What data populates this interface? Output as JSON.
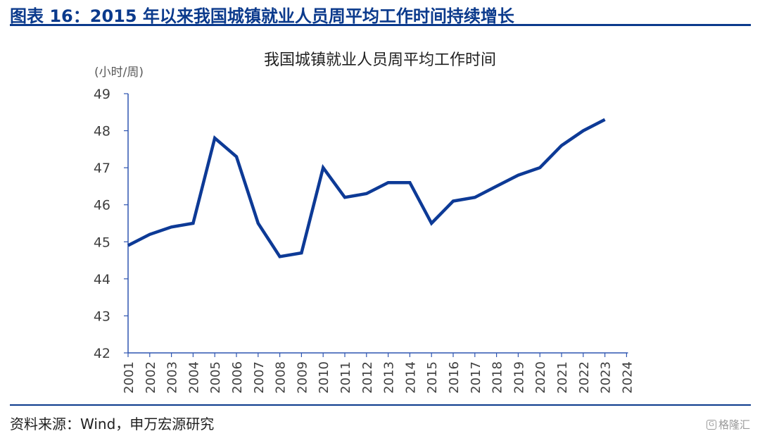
{
  "header": {
    "title": "图表 16：2015 年以来我国城镇就业人员周平均工作时间持续增长"
  },
  "footer": {
    "source": "资料来源：Wind，申万宏源研究",
    "watermark": "格隆汇"
  },
  "colors": {
    "accent": "#0b3a8c",
    "line": "#0d3a96"
  },
  "chart_data": {
    "type": "line",
    "title": "我国城镇就业人员周平均工作时间",
    "ylabel": "(小时/周)",
    "xlabel": "",
    "categories": [
      "2001",
      "2002",
      "2003",
      "2004",
      "2005",
      "2006",
      "2007",
      "2008",
      "2009",
      "2010",
      "2011",
      "2012",
      "2013",
      "2014",
      "2015",
      "2016",
      "2017",
      "2018",
      "2019",
      "2020",
      "2021",
      "2022",
      "2023",
      "2024"
    ],
    "series": [
      {
        "values": [
          44.9,
          45.2,
          45.4,
          45.5,
          47.8,
          47.3,
          45.5,
          44.6,
          44.7,
          47.0,
          46.2,
          46.3,
          46.6,
          46.6,
          45.5,
          46.1,
          46.2,
          46.5,
          46.8,
          47.0,
          47.6,
          48.0,
          48.3,
          null
        ]
      }
    ],
    "ylim": [
      42,
      49
    ],
    "yticks": [
      42,
      43,
      44,
      45,
      46,
      47,
      48,
      49
    ],
    "grid": false,
    "legend": "none"
  }
}
